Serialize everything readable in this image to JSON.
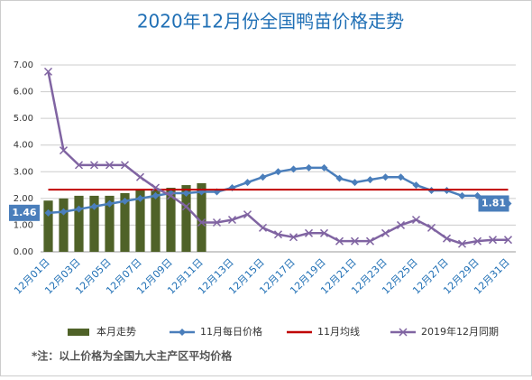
{
  "chart_data": {
    "type": "combo",
    "title": "2020年12月份全国鸭苗价格走势",
    "footnote": "*注：以上价格为全国九大主产区平均价格",
    "categories": [
      "12月01日",
      null,
      "12月03日",
      null,
      "12月05日",
      null,
      "12月07日",
      null,
      "12月09日",
      null,
      "12月11日",
      null,
      "12月13日",
      null,
      "12月15日",
      null,
      "12月17日",
      null,
      "12月19日",
      null,
      "12月21日",
      null,
      "12月23日",
      null,
      "12月25日",
      null,
      "12月27日",
      null,
      "12月29日",
      null,
      "12月31日"
    ],
    "ylim": [
      0,
      7
    ],
    "yticks": [
      {
        "value": 0,
        "label": "0.00"
      },
      {
        "value": 1,
        "label": "1.00"
      },
      {
        "value": 2,
        "label": "2.00"
      },
      {
        "value": 3,
        "label": "3.00"
      },
      {
        "value": 4,
        "label": "4.00"
      },
      {
        "value": 5,
        "label": "5.00"
      },
      {
        "value": 6,
        "label": "6.00"
      },
      {
        "value": 7,
        "label": "7.00"
      }
    ],
    "grid": true,
    "legend": "bottom",
    "series": [
      {
        "name": "本月走势",
        "type": "bar",
        "color": "#4f6228",
        "values": [
          1.92,
          2.0,
          2.1,
          2.1,
          2.1,
          2.2,
          2.3,
          2.3,
          2.4,
          2.5,
          2.57,
          null,
          null,
          null,
          null,
          null,
          null,
          null,
          null,
          null,
          null,
          null,
          null,
          null,
          null,
          null,
          null,
          null,
          null,
          null,
          null
        ]
      },
      {
        "name": "11月每日价格",
        "type": "line",
        "marker": "diamond",
        "color": "#4a7ebb",
        "values": [
          1.46,
          1.5,
          1.6,
          1.7,
          1.8,
          1.9,
          2.0,
          2.1,
          2.2,
          2.2,
          2.25,
          2.25,
          2.4,
          2.6,
          2.8,
          3.0,
          3.1,
          3.15,
          3.15,
          2.75,
          2.6,
          2.7,
          2.8,
          2.8,
          2.5,
          2.3,
          2.3,
          2.1,
          2.1,
          1.85,
          1.81
        ],
        "value_labels": [
          "1.46",
          null,
          null,
          null,
          null,
          null,
          null,
          null,
          null,
          null,
          null,
          null,
          null,
          null,
          null,
          null,
          null,
          null,
          null,
          null,
          null,
          null,
          null,
          null,
          null,
          null,
          null,
          null,
          null,
          null,
          "1.81"
        ]
      },
      {
        "name": "11月均线",
        "type": "line",
        "marker": "none",
        "color": "#c00000",
        "values": [
          2.33,
          2.33,
          2.33,
          2.33,
          2.33,
          2.33,
          2.33,
          2.33,
          2.33,
          2.33,
          2.33,
          2.33,
          2.33,
          2.33,
          2.33,
          2.33,
          2.33,
          2.33,
          2.33,
          2.33,
          2.33,
          2.33,
          2.33,
          2.33,
          2.33,
          2.33,
          2.33,
          2.33,
          2.33,
          2.33,
          2.33
        ]
      },
      {
        "name": "2019年12月同期",
        "type": "line",
        "marker": "x",
        "color": "#8064a2",
        "values": [
          6.75,
          3.8,
          3.25,
          3.25,
          3.25,
          3.25,
          2.8,
          2.4,
          2.1,
          1.7,
          1.1,
          1.1,
          1.2,
          1.4,
          0.9,
          0.65,
          0.55,
          0.7,
          0.7,
          0.4,
          0.4,
          0.4,
          0.7,
          1.0,
          1.2,
          0.9,
          0.5,
          0.3,
          0.4,
          0.45,
          0.45
        ]
      }
    ]
  }
}
